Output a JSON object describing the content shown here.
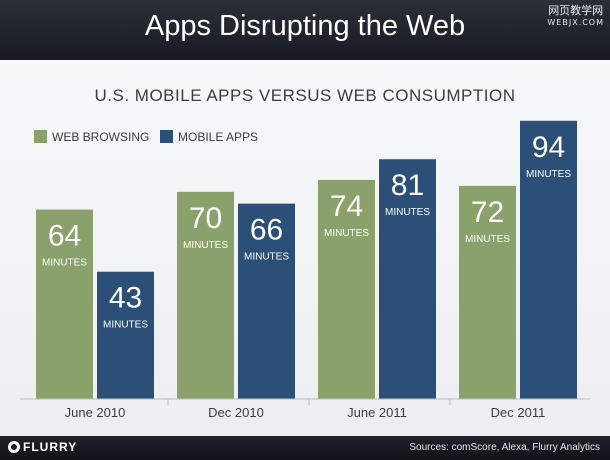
{
  "header": {
    "title": "Apps Disrupting the Web"
  },
  "watermark": {
    "line1": "网页教学网",
    "line2": "WEBJX.COM"
  },
  "footer": {
    "logo": "FLURRY",
    "source": "Sources: comScore, Alexa, Flurry Analytics"
  },
  "colors": {
    "web": "#8aa16b",
    "apps": "#2c4f78",
    "header_bg": "#1f232a"
  },
  "chart_data": {
    "type": "bar",
    "title": "U.S. MOBILE APPS VERSUS WEB CONSUMPTION",
    "categories": [
      "June 2010",
      "Dec 2010",
      "June 2011",
      "Dec 2011"
    ],
    "series": [
      {
        "name": "WEB BROWSING",
        "values": [
          64,
          70,
          74,
          72
        ]
      },
      {
        "name": "MOBILE APPS",
        "values": [
          43,
          66,
          81,
          94
        ]
      }
    ],
    "unit_label": "MINUTES",
    "legend_position": "top-left",
    "ylim": [
      0,
      100
    ],
    "grid": false
  }
}
